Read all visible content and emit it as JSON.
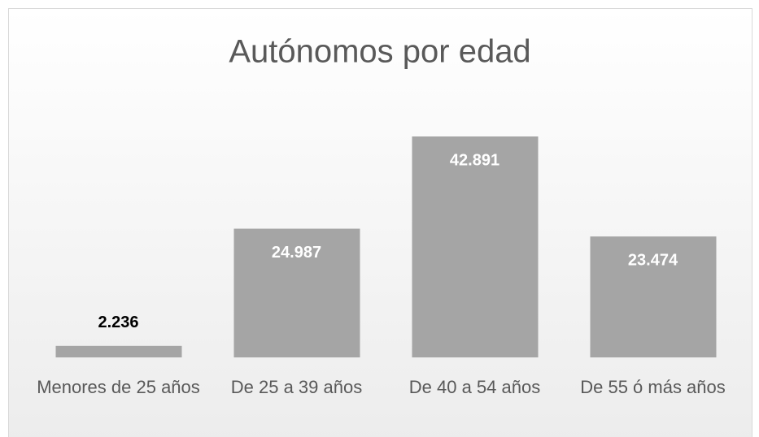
{
  "chart_data": {
    "type": "bar",
    "title": "Autónomos por edad",
    "categories": [
      "Menores de 25 años",
      "De 25 a 39 años",
      "De 40 a 54 años",
      "De 55 ó más años"
    ],
    "values": [
      2236,
      24987,
      42891,
      23474
    ],
    "value_labels": [
      "2.236",
      "24.987",
      "42.891",
      "23.474"
    ],
    "color": "#a5a5a5"
  }
}
